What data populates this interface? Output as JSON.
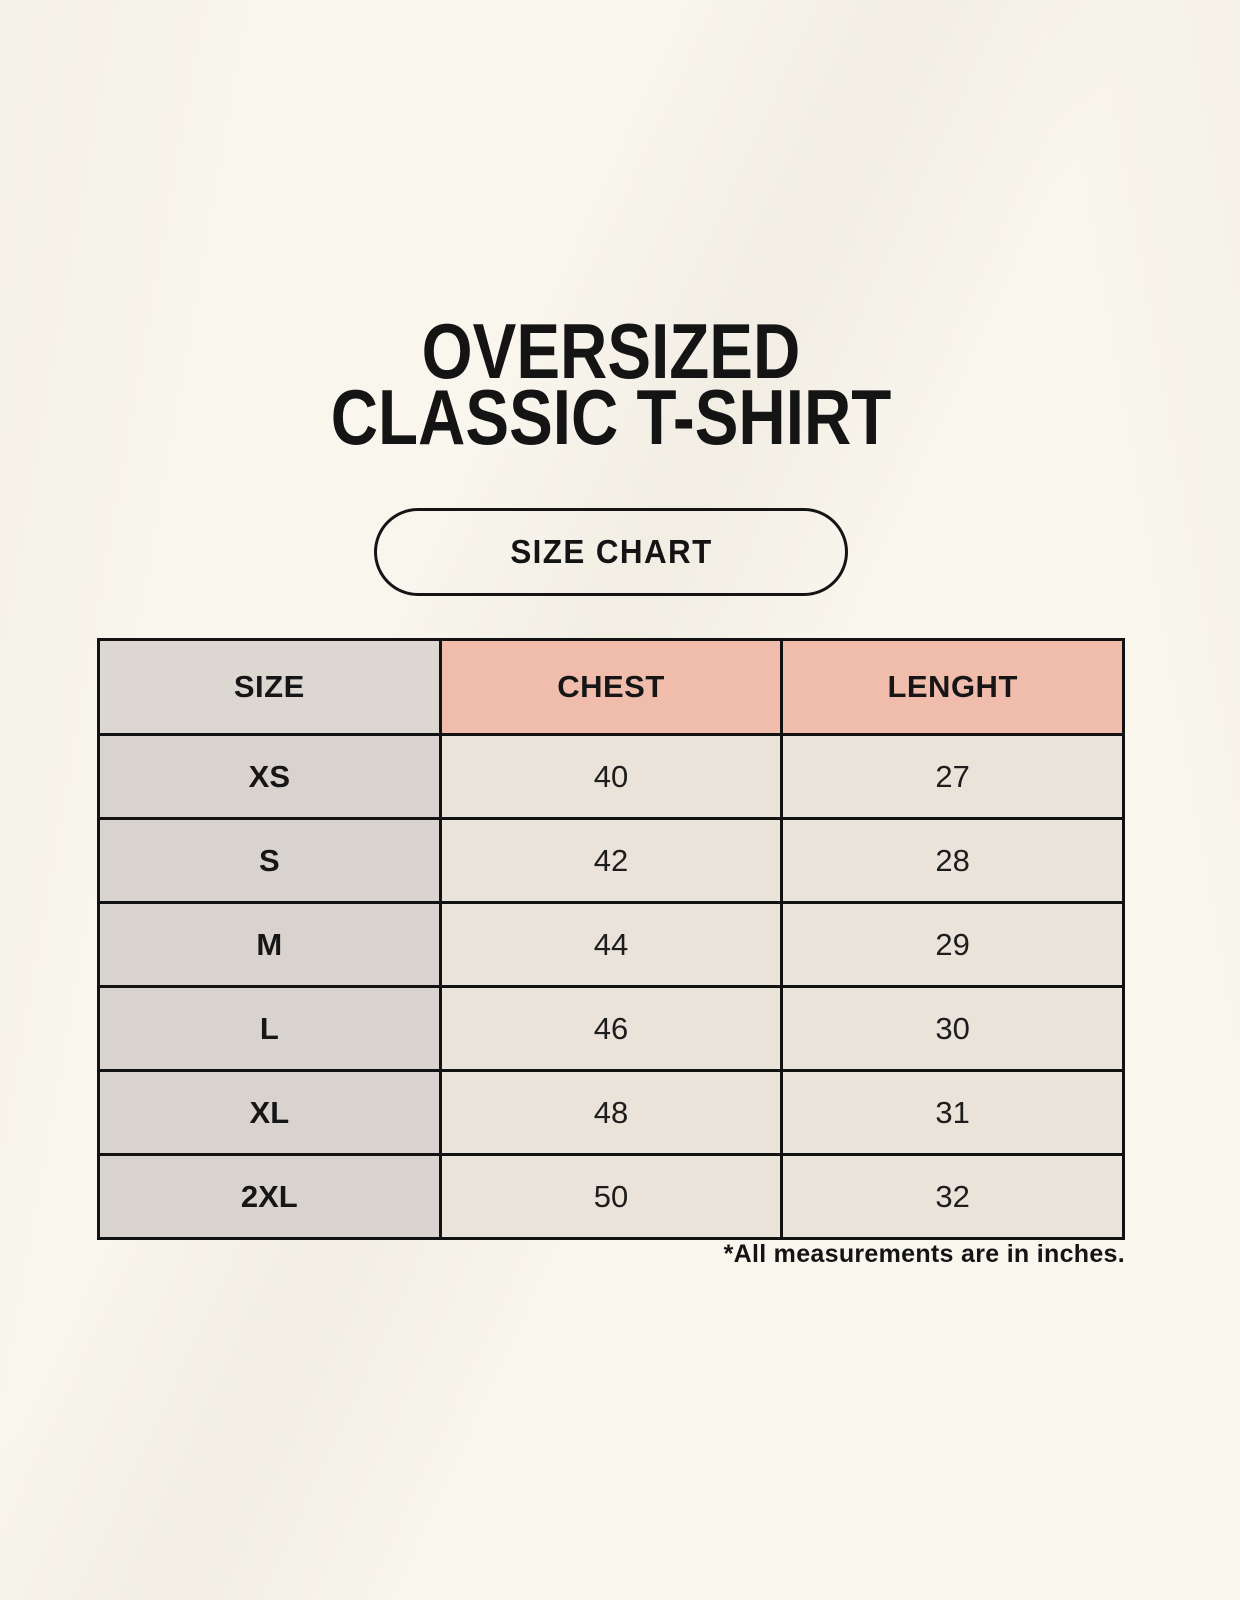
{
  "header": {
    "title_line1": "OVERSIZED",
    "title_line2": "CLASSIC T-SHIRT",
    "badge_label": "SIZE CHART"
  },
  "table": {
    "columns": [
      "SIZE",
      "CHEST",
      "LENGHT"
    ],
    "rows": [
      {
        "size": "XS",
        "chest": "40",
        "length": "27"
      },
      {
        "size": "S",
        "chest": "42",
        "length": "28"
      },
      {
        "size": "M",
        "chest": "44",
        "length": "29"
      },
      {
        "size": "L",
        "chest": "46",
        "length": "30"
      },
      {
        "size": "XL",
        "chest": "48",
        "length": "31"
      },
      {
        "size": "2XL",
        "chest": "50",
        "length": "32"
      }
    ]
  },
  "footer": {
    "note": "*All measurements are in inches."
  },
  "colors": {
    "background": "#f9f6ee",
    "header_accent_pink": "#f0bcab",
    "size_column_gray": "#d9d3cf",
    "header_size_gray": "#ddd7d2",
    "cell_beige": "#eae3d9",
    "border": "#121212",
    "text": "#141414"
  },
  "chart_data": {
    "type": "table",
    "title": "SIZE CHART",
    "subtitle": "OVERSIZED CLASSIC T-SHIRT",
    "columns": [
      "SIZE",
      "CHEST",
      "LENGHT"
    ],
    "rows": [
      [
        "XS",
        40,
        27
      ],
      [
        "S",
        42,
        28
      ],
      [
        "M",
        44,
        29
      ],
      [
        "L",
        46,
        30
      ],
      [
        "XL",
        48,
        31
      ],
      [
        "2XL",
        50,
        32
      ]
    ],
    "units": "inches",
    "note": "*All measurements are in inches."
  }
}
